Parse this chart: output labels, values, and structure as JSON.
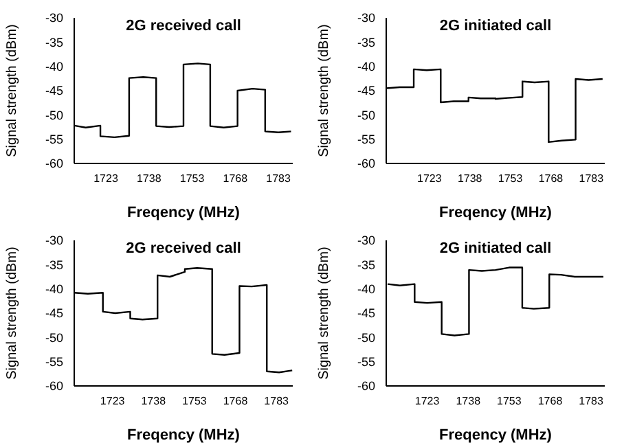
{
  "chart_data": [
    {
      "type": "line",
      "title": "2G received call",
      "xlabel": "Freqency (MHz)",
      "ylabel": "Signal strength (dBm)",
      "xlim": [
        1712,
        1788
      ],
      "xticks": [
        1723,
        1738,
        1753,
        1768,
        1783
      ],
      "ylim": [
        -60,
        -30
      ],
      "yticks": [
        -60,
        -55,
        -50,
        -45,
        -40,
        -35,
        -30
      ],
      "grid": false,
      "marker": "none",
      "line_style": "solid",
      "series": [
        {
          "color": "#000000",
          "x": [
            1712,
            1716,
            1721.1,
            1721.1,
            1726,
            1731.1,
            1731.1,
            1736,
            1740.5,
            1740.5,
            1745,
            1750,
            1750,
            1755,
            1759.3,
            1759.3,
            1764,
            1768.8,
            1768.8,
            1774,
            1778.4,
            1778.4,
            1783,
            1787.4
          ],
          "values": [
            -52.2,
            -52.6,
            -52.2,
            -54.4,
            -54.6,
            -54.3,
            -42.4,
            -42.2,
            -42.4,
            -52.3,
            -52.5,
            -52.3,
            -39.6,
            -39.4,
            -39.6,
            -52.3,
            -52.6,
            -52.3,
            -45,
            -44.6,
            -44.8,
            -53.4,
            -53.6,
            -53.4
          ]
        }
      ]
    },
    {
      "type": "line",
      "title": "2G initiated call",
      "xlabel": "Freqency (MHz)",
      "ylabel": "Signal strength (dBm)",
      "xlim": [
        1707,
        1788
      ],
      "xticks": [
        1723,
        1738,
        1753,
        1768,
        1783
      ],
      "ylim": [
        -60,
        -30
      ],
      "yticks": [
        -60,
        -55,
        -50,
        -45,
        -40,
        -35,
        -30
      ],
      "grid": false,
      "marker": "none",
      "line_style": "solid",
      "series": [
        {
          "color": "#000000",
          "x": [
            1707,
            1712,
            1717.2,
            1717.2,
            1722,
            1727.2,
            1727.2,
            1732,
            1737.5,
            1737.5,
            1742,
            1747.5,
            1747.5,
            1752,
            1757.5,
            1757.5,
            1762,
            1767.2,
            1767.2,
            1772,
            1777.2,
            1777.2,
            1782,
            1787.2
          ],
          "values": [
            -44.5,
            -44.3,
            -44.3,
            -40.6,
            -40.8,
            -40.6,
            -47.4,
            -47.2,
            -47.2,
            -46.4,
            -46.6,
            -46.6,
            -46.7,
            -46.5,
            -46.3,
            -43.1,
            -43.3,
            -43.1,
            -55.6,
            -55.3,
            -55.1,
            -42.6,
            -42.8,
            -42.6
          ]
        }
      ]
    },
    {
      "type": "line",
      "title": "2G received call",
      "xlabel": "Freqency (MHz)",
      "ylabel": "Signal strength (dBm)",
      "xlim": [
        1709,
        1789
      ],
      "xticks": [
        1723,
        1738,
        1753,
        1768,
        1783
      ],
      "ylim": [
        -60,
        -30
      ],
      "yticks": [
        -60,
        -55,
        -50,
        -45,
        -40,
        -35,
        -30
      ],
      "grid": false,
      "marker": "none",
      "line_style": "solid",
      "series": [
        {
          "color": "#000000",
          "x": [
            1709,
            1714,
            1719.5,
            1719.5,
            1724,
            1729.5,
            1729.5,
            1734,
            1739.5,
            1739.5,
            1744,
            1749.5,
            1749.5,
            1754,
            1759.5,
            1759.5,
            1764,
            1769.5,
            1769.5,
            1774,
            1779.5,
            1779.5,
            1784,
            1788.8
          ],
          "values": [
            -40.8,
            -41,
            -40.8,
            -44.7,
            -45,
            -44.7,
            -46.1,
            -46.3,
            -46.1,
            -37.2,
            -37.5,
            -36.5,
            -35.9,
            -35.7,
            -35.9,
            -53.4,
            -53.6,
            -53.2,
            -39.4,
            -39.5,
            -39.2,
            -57,
            -57.2,
            -56.8
          ]
        }
      ]
    },
    {
      "type": "line",
      "title": "2G initiated call",
      "xlabel": "Freqency (MHz)",
      "ylabel": "Signal strength (dBm)",
      "xlim": [
        1708,
        1788
      ],
      "xticks": [
        1723,
        1738,
        1753,
        1768,
        1783
      ],
      "ylim": [
        -60,
        -30
      ],
      "yticks": [
        -60,
        -55,
        -50,
        -45,
        -40,
        -35,
        -30
      ],
      "grid": false,
      "marker": "none",
      "line_style": "solid",
      "series": [
        {
          "color": "#000000",
          "x": [
            1708.5,
            1713,
            1718.4,
            1718.4,
            1723,
            1728.3,
            1728.3,
            1733,
            1738.3,
            1738.3,
            1743,
            1748,
            1753,
            1757.8,
            1757.8,
            1762,
            1767.7,
            1767.7,
            1772,
            1777,
            1782,
            1787.5
          ],
          "values": [
            -39,
            -39.3,
            -39,
            -42.7,
            -42.9,
            -42.7,
            -49.3,
            -49.6,
            -49.3,
            -36.1,
            -36.3,
            -36.1,
            -35.6,
            -35.6,
            -43.9,
            -44.1,
            -43.9,
            -37,
            -37.1,
            -37.5,
            -37.5,
            -37.5
          ]
        }
      ]
    }
  ]
}
